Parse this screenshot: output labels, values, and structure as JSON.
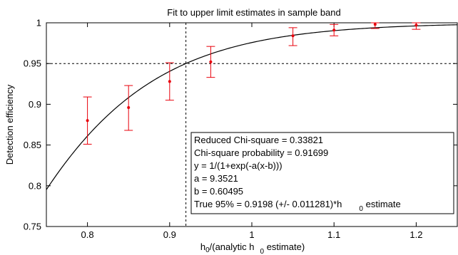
{
  "chart_data": {
    "type": "scatter",
    "title": "Fit to upper limit estimates in sample band",
    "xlabel": {
      "main": "h",
      "sub1": "0",
      "mid": "/(analytic h",
      "sub2": "0",
      "tail": " estimate)"
    },
    "ylabel": "Detection efficiency",
    "xlim": [
      0.75,
      1.25
    ],
    "ylim": [
      0.75,
      1.0
    ],
    "xticks": [
      0.8,
      0.9,
      1.0,
      1.1,
      1.2
    ],
    "xtick_labels": [
      "0.8",
      "0.9",
      "1",
      "1.1",
      "1.2"
    ],
    "yticks": [
      0.75,
      0.8,
      0.85,
      0.9,
      0.95,
      1.0
    ],
    "ytick_labels": [
      "0.75",
      "0.8",
      "0.85",
      "0.9",
      "0.95",
      "1"
    ],
    "grid": false,
    "colors": {
      "points": "#e8000b",
      "curve": "#000000"
    },
    "series": [
      {
        "kind": "points-with-error-bars",
        "x": [
          0.8,
          0.85,
          0.9,
          0.95,
          1.05,
          1.1,
          1.15,
          1.2
        ],
        "y": [
          0.88,
          0.896,
          0.928,
          0.952,
          0.984,
          0.991,
          0.998,
          0.997
        ],
        "y_err_low": [
          0.029,
          0.028,
          0.023,
          0.019,
          0.012,
          0.007,
          0.005,
          0.005
        ],
        "y_err_high": [
          0.029,
          0.027,
          0.023,
          0.019,
          0.01,
          0.007,
          0.002,
          0.003
        ]
      },
      {
        "kind": "fit-curve",
        "formula": "1/(1+exp(-a(x-b)))",
        "a": 9.3521,
        "b": 0.60495
      }
    ],
    "reference_lines": {
      "y": 0.95,
      "x": 0.9198
    },
    "annotation_box": [
      "Reduced Chi-square = 0.33821",
      "Chi-square probability = 0.91699",
      "y = 1/(1+exp(-a(x-b)))",
      "a = 9.3521",
      "b = 0.60495"
    ],
    "annotation_last": {
      "pre": "True 95% = 0.9198 (+/- 0.011281)*h",
      "sub": "0",
      "post": " estimate"
    }
  }
}
